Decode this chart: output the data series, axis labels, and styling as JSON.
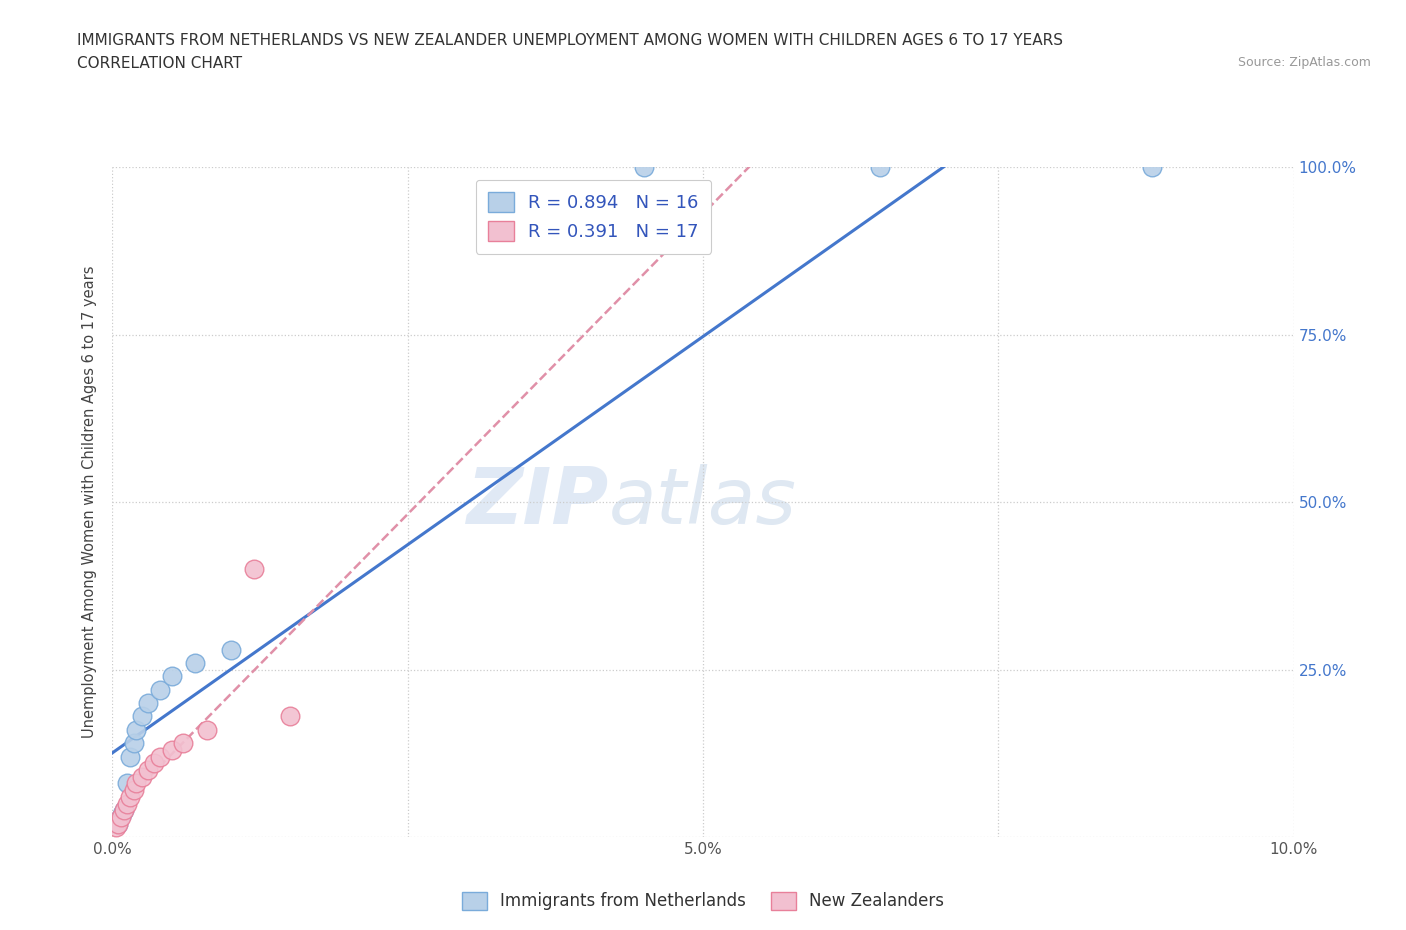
{
  "title_line1": "IMMIGRANTS FROM NETHERLANDS VS NEW ZEALANDER UNEMPLOYMENT AMONG WOMEN WITH CHILDREN AGES 6 TO 17 YEARS",
  "title_line2": "CORRELATION CHART",
  "source_text": "Source: ZipAtlas.com",
  "ylabel": "Unemployment Among Women with Children Ages 6 to 17 years",
  "xlim": [
    0.0,
    10.0
  ],
  "ylim": [
    0.0,
    100.0
  ],
  "watermark_text": "ZIP",
  "watermark_text2": "atlas",
  "blue_color": "#b8d0e8",
  "blue_edge_color": "#7aabda",
  "pink_color": "#f2c0d0",
  "pink_edge_color": "#e8809a",
  "regression_blue_color": "#4477cc",
  "regression_pink_color": "#e090a8",
  "grid_color": "#cccccc",
  "r_blue": 0.894,
  "n_blue": 16,
  "r_pink": 0.391,
  "n_pink": 17,
  "blue_label": "Immigrants from Netherlands",
  "pink_label": "New Zealanders",
  "legend_r_color": "#3355bb",
  "ytick_color": "#4477cc",
  "blue_x": [
    0.05,
    0.08,
    0.1,
    0.12,
    0.15,
    0.18,
    0.2,
    0.25,
    0.3,
    0.4,
    0.5,
    0.7,
    1.0,
    4.5,
    6.5,
    8.8
  ],
  "blue_y": [
    2.0,
    3.5,
    4.0,
    8.0,
    12.0,
    14.0,
    16.0,
    18.0,
    20.0,
    22.0,
    24.0,
    26.0,
    28.0,
    100.0,
    100.0,
    100.0
  ],
  "pink_x": [
    0.03,
    0.05,
    0.07,
    0.1,
    0.12,
    0.15,
    0.18,
    0.2,
    0.25,
    0.3,
    0.35,
    0.4,
    0.5,
    0.6,
    0.8,
    1.2,
    1.5
  ],
  "pink_y": [
    1.5,
    2.0,
    3.0,
    4.0,
    5.0,
    6.0,
    7.0,
    8.0,
    9.0,
    10.0,
    11.0,
    12.0,
    13.0,
    14.0,
    16.0,
    40.0,
    18.0
  ]
}
